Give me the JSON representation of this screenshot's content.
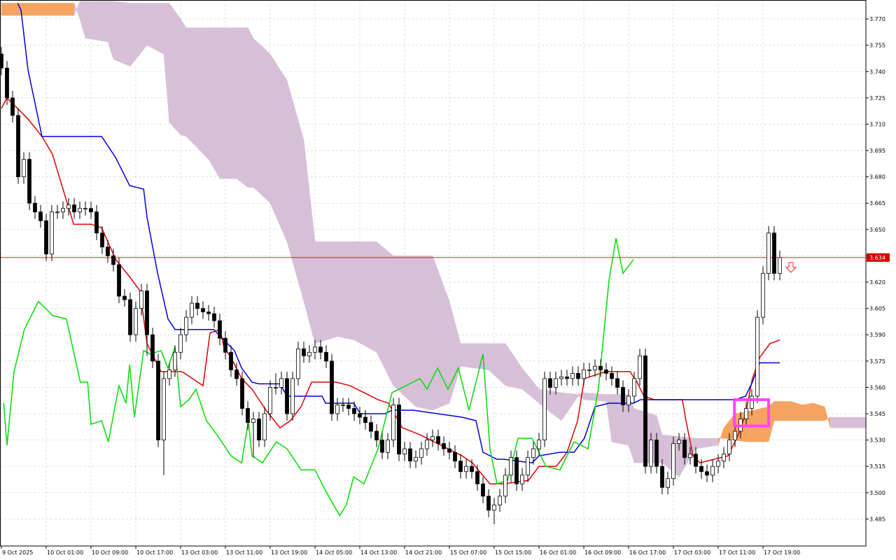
{
  "chart_data": {
    "type": "candlestick",
    "xlim": [
      -0.25,
      154.375
    ],
    "ylim": [
      3.4696,
      3.7808
    ],
    "yticks": [
      {
        "value": 3.77,
        "label": "3.770"
      },
      3.755,
      {
        "value": 3.74,
        "label": "3.740"
      },
      3.725,
      {
        "value": 3.71,
        "label": "3.710"
      },
      3.695,
      {
        "value": 3.68,
        "label": "3.680"
      },
      3.665,
      {
        "value": 3.65,
        "label": "3.650"
      },
      3.635,
      {
        "value": 3.62,
        "label": "3.620"
      },
      3.605,
      {
        "value": 3.59,
        "label": "3.590"
      },
      3.575,
      {
        "value": 3.56,
        "label": "3.560"
      },
      3.545,
      {
        "value": 3.53,
        "label": "3.530"
      },
      3.515,
      {
        "value": 3.5,
        "label": "3.500"
      },
      3.485
    ],
    "xticks": [
      {
        "value": 0,
        "label": "9 Oct 2025"
      },
      {
        "value": 8,
        "label": "10 Oct 01:00"
      },
      {
        "value": 16,
        "label": "10 Oct 09:00"
      },
      {
        "value": 24,
        "label": "10 Oct 17:00"
      },
      {
        "value": 32,
        "label": "13 Oct 03:00"
      },
      {
        "value": 40,
        "label": "13 Oct 11:00"
      },
      {
        "value": 48,
        "label": "13 Oct 19:00"
      },
      {
        "value": 56,
        "label": "14 Oct 05:00"
      },
      {
        "value": 64,
        "label": "14 Oct 13:00"
      },
      {
        "value": 72,
        "label": "14 Oct 21:00"
      },
      {
        "value": 80,
        "label": "15 Oct 07:00"
      },
      {
        "value": 88,
        "label": "15 Oct 15:00"
      },
      {
        "value": 96,
        "label": "16 Oct 01:00"
      },
      {
        "value": 104,
        "label": "16 Oct 09:00"
      },
      {
        "value": 112,
        "label": "16 Oct 17:00"
      },
      {
        "value": 120,
        "label": "17 Oct 03:00"
      },
      {
        "value": 128,
        "label": "17 Oct 11:00"
      },
      {
        "value": 136,
        "label": "17 Oct 19:00"
      }
    ],
    "grid": true,
    "current_price": 3.634,
    "current_price_color": "#d00000",
    "ohlc": {
      "open": [
        3.75,
        3.742,
        3.725,
        3.715,
        3.68,
        3.69,
        3.665,
        3.66,
        3.655,
        3.636,
        3.66,
        3.66,
        3.662,
        3.664,
        3.66,
        3.662,
        3.662,
        3.66,
        3.648,
        3.64,
        3.635,
        3.63,
        3.612,
        3.61,
        3.59,
        3.605,
        3.615,
        3.59,
        3.575,
        3.53,
        3.565,
        3.57,
        3.58,
        3.59,
        3.6,
        3.608,
        3.605,
        3.603,
        3.602,
        3.598,
        3.588,
        3.58,
        3.57,
        3.565,
        3.548,
        3.54,
        3.542,
        3.53,
        3.545,
        3.56,
        3.56,
        3.565,
        3.545,
        3.565,
        3.582,
        3.578,
        3.58,
        3.583,
        3.58,
        3.575,
        3.545,
        3.55,
        3.55,
        3.548,
        3.545,
        3.543,
        3.54,
        3.535,
        3.53,
        3.523,
        3.53,
        3.55,
        3.522,
        3.525,
        3.518,
        3.52,
        3.525,
        3.53,
        3.532,
        3.528,
        3.525,
        3.523,
        3.518,
        3.512,
        3.515,
        3.512,
        3.505,
        3.498,
        3.49,
        3.493,
        3.498,
        3.51,
        3.52,
        3.505,
        3.51,
        3.52,
        3.525,
        3.53,
        3.565,
        3.56,
        3.565,
        3.566,
        3.565,
        3.568,
        3.565,
        3.57,
        3.57,
        3.572,
        3.57,
        3.568,
        3.565,
        3.56,
        3.55,
        3.555,
        3.565,
        3.578,
        3.515,
        3.53,
        3.515,
        3.503,
        3.508,
        3.528,
        3.53,
        3.52,
        3.522,
        3.515,
        3.512,
        3.51,
        3.515,
        3.518,
        3.522,
        3.53,
        3.535,
        3.542,
        3.548,
        3.555,
        3.6,
        3.625,
        3.648,
        3.625
      ],
      "high": [
        3.754,
        3.746,
        3.729,
        3.719,
        3.694,
        3.694,
        3.669,
        3.664,
        3.659,
        3.664,
        3.664,
        3.666,
        3.668,
        3.668,
        3.666,
        3.666,
        3.666,
        3.664,
        3.652,
        3.644,
        3.639,
        3.634,
        3.616,
        3.614,
        3.609,
        3.619,
        3.619,
        3.594,
        3.579,
        3.569,
        3.574,
        3.584,
        3.594,
        3.604,
        3.612,
        3.612,
        3.609,
        3.607,
        3.606,
        3.602,
        3.592,
        3.584,
        3.574,
        3.569,
        3.552,
        3.546,
        3.546,
        3.549,
        3.564,
        3.568,
        3.569,
        3.569,
        3.569,
        3.586,
        3.586,
        3.584,
        3.587,
        3.587,
        3.584,
        3.579,
        3.554,
        3.554,
        3.554,
        3.552,
        3.549,
        3.547,
        3.544,
        3.539,
        3.534,
        3.534,
        3.554,
        3.554,
        3.529,
        3.529,
        3.524,
        3.529,
        3.534,
        3.536,
        3.536,
        3.532,
        3.529,
        3.527,
        3.522,
        3.519,
        3.519,
        3.516,
        3.509,
        3.502,
        3.497,
        3.502,
        3.514,
        3.524,
        3.524,
        3.514,
        3.524,
        3.529,
        3.534,
        3.569,
        3.569,
        3.569,
        3.57,
        3.57,
        3.572,
        3.572,
        3.574,
        3.574,
        3.576,
        3.576,
        3.574,
        3.572,
        3.569,
        3.564,
        3.559,
        3.569,
        3.582,
        3.582,
        3.534,
        3.534,
        3.519,
        3.512,
        3.532,
        3.534,
        3.534,
        3.526,
        3.526,
        3.519,
        3.516,
        3.519,
        3.522,
        3.526,
        3.534,
        3.539,
        3.546,
        3.552,
        3.559,
        3.604,
        3.629,
        3.652,
        3.652,
        3.638
      ],
      "low": [
        3.738,
        3.721,
        3.711,
        3.676,
        3.676,
        3.661,
        3.656,
        3.651,
        3.632,
        3.632,
        3.656,
        3.656,
        3.658,
        3.656,
        3.656,
        3.658,
        3.656,
        3.644,
        3.636,
        3.631,
        3.626,
        3.608,
        3.606,
        3.586,
        3.586,
        3.601,
        3.578,
        3.571,
        3.526,
        3.51,
        3.561,
        3.566,
        3.576,
        3.586,
        3.596,
        3.601,
        3.599,
        3.598,
        3.594,
        3.584,
        3.576,
        3.566,
        3.561,
        3.544,
        3.536,
        3.52,
        3.526,
        3.526,
        3.541,
        3.556,
        3.556,
        3.541,
        3.541,
        3.561,
        3.574,
        3.574,
        3.576,
        3.576,
        3.571,
        3.541,
        3.541,
        3.546,
        3.544,
        3.541,
        3.539,
        3.536,
        3.531,
        3.526,
        3.519,
        3.519,
        3.526,
        3.518,
        3.518,
        3.514,
        3.514,
        3.516,
        3.521,
        3.526,
        3.524,
        3.521,
        3.519,
        3.514,
        3.508,
        3.508,
        3.508,
        3.501,
        3.494,
        3.486,
        3.482,
        3.489,
        3.494,
        3.506,
        3.501,
        3.501,
        3.506,
        3.516,
        3.521,
        3.526,
        3.556,
        3.556,
        3.561,
        3.561,
        3.561,
        3.561,
        3.561,
        3.566,
        3.566,
        3.566,
        3.564,
        3.561,
        3.556,
        3.546,
        3.546,
        3.551,
        3.561,
        3.511,
        3.511,
        3.511,
        3.499,
        3.499,
        3.504,
        3.524,
        3.516,
        3.516,
        3.511,
        3.508,
        3.506,
        3.506,
        3.511,
        3.514,
        3.518,
        3.526,
        3.531,
        3.538,
        3.544,
        3.551,
        3.596,
        3.621,
        3.621,
        3.621
      ],
      "close": [
        3.742,
        3.725,
        3.715,
        3.68,
        3.69,
        3.665,
        3.66,
        3.655,
        3.636,
        3.66,
        3.66,
        3.662,
        3.664,
        3.66,
        3.662,
        3.662,
        3.66,
        3.648,
        3.64,
        3.635,
        3.63,
        3.612,
        3.61,
        3.59,
        3.605,
        3.615,
        3.59,
        3.575,
        3.53,
        3.565,
        3.57,
        3.58,
        3.59,
        3.6,
        3.608,
        3.605,
        3.603,
        3.602,
        3.598,
        3.588,
        3.58,
        3.57,
        3.565,
        3.548,
        3.54,
        3.542,
        3.53,
        3.545,
        3.56,
        3.56,
        3.565,
        3.545,
        3.565,
        3.582,
        3.578,
        3.58,
        3.583,
        3.58,
        3.575,
        3.545,
        3.55,
        3.55,
        3.548,
        3.545,
        3.543,
        3.54,
        3.535,
        3.53,
        3.523,
        3.53,
        3.55,
        3.522,
        3.525,
        3.518,
        3.52,
        3.525,
        3.53,
        3.532,
        3.528,
        3.525,
        3.523,
        3.518,
        3.512,
        3.515,
        3.512,
        3.505,
        3.498,
        3.49,
        3.493,
        3.498,
        3.51,
        3.52,
        3.505,
        3.51,
        3.52,
        3.525,
        3.53,
        3.565,
        3.56,
        3.565,
        3.566,
        3.565,
        3.568,
        3.565,
        3.57,
        3.57,
        3.572,
        3.57,
        3.568,
        3.565,
        3.56,
        3.55,
        3.555,
        3.565,
        3.578,
        3.515,
        3.53,
        3.515,
        3.503,
        3.508,
        3.528,
        3.53,
        3.52,
        3.522,
        3.515,
        3.512,
        3.51,
        3.515,
        3.518,
        3.522,
        3.53,
        3.535,
        3.542,
        3.548,
        3.555,
        3.6,
        3.625,
        3.648,
        3.625,
        3.634
      ]
    },
    "cloud": {
      "bull_color": "#f4a460",
      "bear_color": "#d7bfd8",
      "x": [
        0,
        13,
        14,
        15,
        19,
        20,
        23,
        26,
        29,
        30,
        32,
        33,
        37,
        39,
        42,
        44,
        45,
        48,
        51,
        54,
        56,
        60,
        63,
        67,
        70,
        74,
        77,
        80,
        82,
        87,
        90,
        93,
        96,
        100,
        103,
        104,
        108,
        109,
        112,
        113,
        117,
        118,
        121,
        124,
        128,
        129,
        131,
        133,
        137,
        138,
        141,
        143,
        145,
        147,
        148,
        154.375
      ],
      "span_a": [
        3.779,
        3.779,
        3.77,
        3.759,
        3.757,
        3.747,
        3.743,
        3.755,
        3.75,
        3.711,
        3.704,
        3.703,
        3.69,
        3.679,
        3.679,
        3.674,
        3.674,
        3.665,
        3.643,
        3.609,
        3.585,
        3.589,
        3.587,
        3.58,
        3.561,
        3.549,
        3.547,
        3.551,
        3.572,
        3.57,
        3.561,
        3.559,
        3.551,
        3.541,
        3.555,
        3.553,
        3.552,
        3.529,
        3.527,
        3.517,
        3.517,
        3.517,
        3.509,
        3.525,
        3.527,
        3.537,
        3.545,
        3.546,
        3.549,
        3.552,
        3.552,
        3.55,
        3.551,
        3.549,
        3.537,
        3.537
      ],
      "span_b": [
        3.772,
        3.772,
        3.78,
        3.78,
        3.78,
        3.78,
        3.779,
        3.779,
        3.779,
        3.779,
        3.77,
        3.765,
        3.765,
        3.765,
        3.765,
        3.765,
        3.759,
        3.75,
        3.735,
        3.701,
        3.643,
        3.643,
        3.643,
        3.643,
        3.635,
        3.635,
        3.635,
        3.609,
        3.585,
        3.585,
        3.585,
        3.571,
        3.559,
        3.557,
        3.556,
        3.557,
        3.556,
        3.556,
        3.556,
        3.548,
        3.544,
        3.533,
        3.532,
        3.531,
        3.531,
        3.531,
        3.53,
        3.529,
        3.529,
        3.541,
        3.541,
        3.541,
        3.541,
        3.541,
        3.543,
        3.543
      ]
    },
    "series": [
      {
        "color": "#e00000",
        "x": [
          0,
          1,
          2.25,
          4.75,
          7.25,
          9.1,
          11,
          12.9,
          16,
          17.9,
          20.4,
          22.9,
          24.75,
          26,
          28.5,
          32.25,
          36,
          37.25,
          39,
          39.75,
          41,
          42.9,
          44.75,
          47.25,
          49.75,
          51.6,
          53.5,
          55.4,
          59.75,
          62.25,
          64.75,
          67.25,
          69.1,
          71.6,
          74.75,
          77.25,
          79.75,
          82.25,
          84.1,
          87.25,
          89.75,
          94.1,
          96,
          99.1,
          101,
          102.9,
          104.1,
          107.9,
          109.75,
          112.25,
          113.5,
          114.75,
          116.6,
          121.6,
          122.25,
          123.5,
          124.75,
          127.25,
          129.75,
          131.6,
          132.9,
          134.1,
          135.4,
          137.25,
          139
        ],
        "values": [
          3.719,
          3.725,
          3.721,
          3.713,
          3.703,
          3.693,
          3.673,
          3.653,
          3.653,
          3.651,
          3.633,
          3.623,
          3.615,
          3.585,
          3.569,
          3.569,
          3.561,
          3.591,
          3.593,
          3.583,
          3.577,
          3.565,
          3.559,
          3.547,
          3.537,
          3.541,
          3.549,
          3.563,
          3.563,
          3.561,
          3.557,
          3.553,
          3.551,
          3.537,
          3.533,
          3.529,
          3.525,
          3.521,
          3.517,
          3.505,
          3.505,
          3.507,
          3.515,
          3.515,
          3.523,
          3.541,
          3.565,
          3.569,
          3.569,
          3.569,
          3.563,
          3.555,
          3.553,
          3.553,
          3.541,
          3.521,
          3.517,
          3.519,
          3.521,
          3.533,
          3.545,
          3.565,
          3.577,
          3.585,
          3.587
        ]
      },
      {
        "color": "#0000d8",
        "x": [
          2.9,
          3.5,
          4.75,
          7.25,
          17.9,
          20.4,
          22.9,
          25.4,
          26,
          27.9,
          29.75,
          31,
          37.9,
          39.75,
          41.6,
          42.9,
          44.75,
          46,
          49.75,
          51,
          57.25,
          57.9,
          62.9,
          64.1,
          68.5,
          69.75,
          73.5,
          77.9,
          82.25,
          84.75,
          86,
          88.5,
          89.75,
          94.75,
          96,
          99.75,
          102.25,
          104.1,
          106,
          108.5,
          112.9,
          114.1,
          119.75,
          131,
          132.9,
          134.1,
          135.4,
          139
        ],
        "values": [
          3.779,
          3.775,
          3.741,
          3.703,
          3.703,
          3.691,
          3.675,
          3.673,
          3.657,
          3.625,
          3.599,
          3.593,
          3.593,
          3.587,
          3.581,
          3.571,
          3.563,
          3.562,
          3.562,
          3.555,
          3.555,
          3.551,
          3.551,
          3.545,
          3.545,
          3.547,
          3.547,
          3.545,
          3.543,
          3.541,
          3.523,
          3.519,
          3.519,
          3.517,
          3.521,
          3.523,
          3.523,
          3.531,
          3.549,
          3.551,
          3.551,
          3.553,
          3.553,
          3.553,
          3.555,
          3.563,
          3.574,
          3.574
        ]
      },
      {
        "color": "#00dd00",
        "x": [
          0.4,
          1,
          2.25,
          4.1,
          6.6,
          7.9,
          9.1,
          11.6,
          14.1,
          15.4,
          16,
          17.9,
          19.1,
          21,
          22.25,
          22.9,
          23.75,
          25.4,
          26.6,
          28.5,
          29.75,
          31,
          32,
          33.5,
          34.75,
          36.6,
          38.5,
          41,
          42.9,
          44.1,
          44.75,
          46.6,
          49.1,
          51,
          53.5,
          56,
          57.9,
          60.4,
          61.6,
          62.9,
          64.75,
          67.25,
          69.75,
          72.25,
          74.75,
          76,
          77.9,
          79.75,
          81.6,
          83.5,
          86,
          87.25,
          88.5,
          90.4,
          92.25,
          94.75,
          97.25,
          99.75,
          102.25,
          104.75,
          106.6,
          108.5,
          109.75,
          111,
          112.9
        ],
        "values": [
          3.551,
          3.527,
          3.569,
          3.593,
          3.609,
          3.605,
          3.601,
          3.599,
          3.563,
          3.563,
          3.539,
          3.541,
          3.529,
          3.561,
          3.551,
          3.573,
          3.543,
          3.581,
          3.579,
          3.581,
          3.571,
          3.583,
          3.549,
          3.553,
          3.559,
          3.541,
          3.533,
          3.521,
          3.517,
          3.541,
          3.521,
          3.517,
          3.529,
          3.525,
          3.513,
          3.513,
          3.501,
          3.487,
          3.493,
          3.509,
          3.505,
          3.525,
          3.557,
          3.561,
          3.565,
          3.559,
          3.571,
          3.559,
          3.571,
          3.547,
          3.579,
          3.525,
          3.505,
          3.507,
          3.531,
          3.531,
          3.515,
          3.513,
          3.529,
          3.525,
          3.559,
          3.621,
          3.645,
          3.625,
          3.633
        ]
      }
    ],
    "highlight": {
      "color": "#ff44ff",
      "x": [
        130.9,
        137
      ],
      "y": [
        3.538,
        3.553
      ]
    },
    "signal": {
      "color": "#ff2020",
      "x": 141,
      "y": 3.628
    }
  }
}
